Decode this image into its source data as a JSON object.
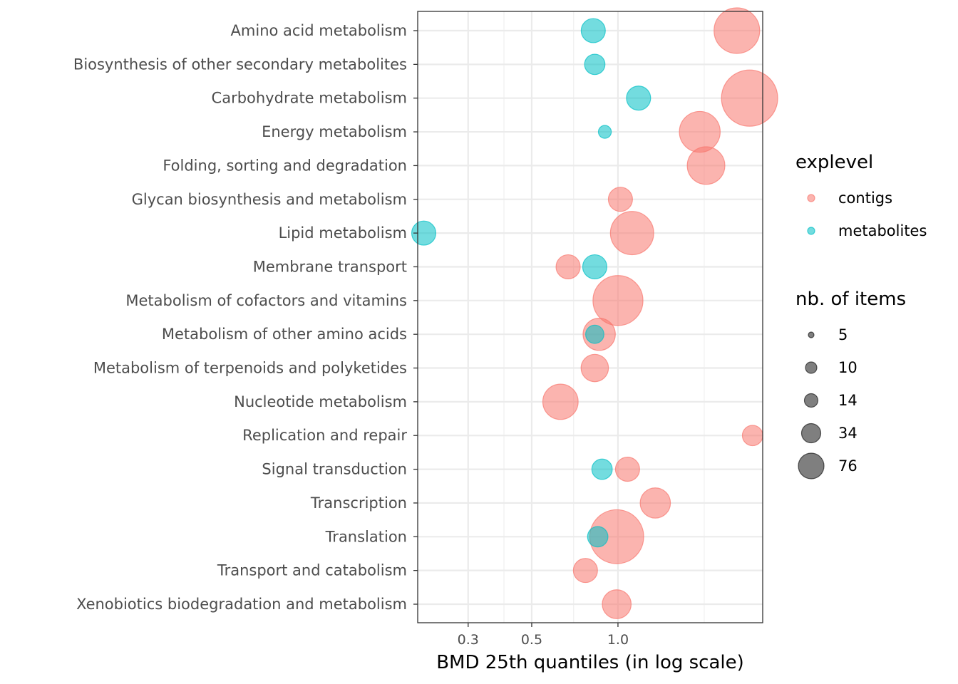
{
  "chart_data": {
    "type": "scatter",
    "xlabel": "BMD 25th quantiles (in log scale)",
    "x_scale": "log",
    "xlim": [
      0.2,
      3.2
    ],
    "x_ticks": [
      0.3,
      0.5,
      1.0
    ],
    "x_tick_labels": [
      "0.3",
      "0.5",
      "1.0"
    ],
    "grid": true,
    "legend_placement": "right",
    "categories": [
      "Amino acid metabolism",
      "Biosynthesis of other secondary metabolites",
      "Carbohydrate metabolism",
      "Energy metabolism",
      "Folding, sorting and degradation",
      "Glycan biosynthesis and metabolism",
      "Lipid metabolism",
      "Membrane transport",
      "Metabolism of cofactors and vitamins",
      "Metabolism of other amino acids",
      "Metabolism of terpenoids and polyketides",
      "Nucleotide metabolism",
      "Replication and repair",
      "Signal transduction",
      "Transcription",
      "Translation",
      "Transport and catabolism",
      "Xenobiotics biodegradation and metabolism"
    ],
    "color_legend": {
      "title": "explevel",
      "entries": [
        {
          "label": "contigs",
          "color": "#F8766D"
        },
        {
          "label": "metabolites",
          "color": "#00BFC4"
        }
      ]
    },
    "size_legend": {
      "title": "nb. of items",
      "entries": [
        {
          "label": "5",
          "value": 5
        },
        {
          "label": "10",
          "value": 10
        },
        {
          "label": "14",
          "value": 14
        },
        {
          "label": "34",
          "value": 34
        },
        {
          "label": "76",
          "value": 76
        }
      ]
    },
    "series": [
      {
        "name": "contigs",
        "color": "#F8766D",
        "points": [
          {
            "category": "Amino acid metabolism",
            "x": 2.6,
            "size": 50
          },
          {
            "category": "Carbohydrate metabolism",
            "x": 2.88,
            "size": 76
          },
          {
            "category": "Energy metabolism",
            "x": 1.93,
            "size": 40
          },
          {
            "category": "Folding, sorting and degradation",
            "x": 2.03,
            "size": 34
          },
          {
            "category": "Glycan biosynthesis and metabolism",
            "x": 1.02,
            "size": 14
          },
          {
            "category": "Lipid metabolism",
            "x": 1.12,
            "size": 45
          },
          {
            "category": "Membrane transport",
            "x": 0.67,
            "size": 14
          },
          {
            "category": "Metabolism of cofactors and vitamins",
            "x": 1.0,
            "size": 60
          },
          {
            "category": "Metabolism of other amino acids",
            "x": 0.86,
            "size": 25
          },
          {
            "category": "Metabolism of terpenoids and polyketides",
            "x": 0.83,
            "size": 18
          },
          {
            "category": "Nucleotide metabolism",
            "x": 0.63,
            "size": 30
          },
          {
            "category": "Replication and repair",
            "x": 2.95,
            "size": 10
          },
          {
            "category": "Signal transduction",
            "x": 1.08,
            "size": 14
          },
          {
            "category": "Transcription",
            "x": 1.35,
            "size": 22
          },
          {
            "category": "Translation",
            "x": 0.99,
            "size": 70
          },
          {
            "category": "Transport and catabolism",
            "x": 0.77,
            "size": 14
          },
          {
            "category": "Xenobiotics biodegradation and metabolism",
            "x": 0.99,
            "size": 20
          }
        ]
      },
      {
        "name": "metabolites",
        "color": "#00BFC4",
        "points": [
          {
            "category": "Amino acid metabolism",
            "x": 0.82,
            "size": 14
          },
          {
            "category": "Biosynthesis of other secondary metabolites",
            "x": 0.83,
            "size": 10
          },
          {
            "category": "Carbohydrate metabolism",
            "x": 1.18,
            "size": 14
          },
          {
            "category": "Energy metabolism",
            "x": 0.9,
            "size": 4
          },
          {
            "category": "Lipid metabolism",
            "x": 0.21,
            "size": 14
          },
          {
            "category": "Membrane transport",
            "x": 0.83,
            "size": 14
          },
          {
            "category": "Metabolism of other amino acids",
            "x": 0.83,
            "size": 8
          },
          {
            "category": "Signal transduction",
            "x": 0.88,
            "size": 10
          },
          {
            "category": "Translation",
            "x": 0.85,
            "size": 10
          }
        ]
      }
    ]
  }
}
